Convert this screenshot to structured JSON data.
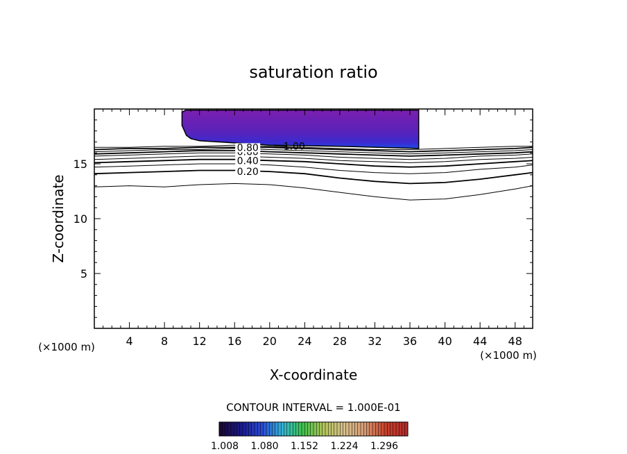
{
  "chart_data": {
    "type": "contour",
    "title": "saturation ratio",
    "xlabel": "X-coordinate",
    "ylabel": "Z-coordinate",
    "x_unit_left": "(×1000 m)",
    "x_unit_right": "(×1000 m)",
    "xlim": [
      0,
      50
    ],
    "ylim": [
      0,
      20
    ],
    "x_ticks": [
      4,
      8,
      12,
      16,
      20,
      24,
      28,
      32,
      36,
      40,
      44,
      48
    ],
    "y_ticks": [
      5,
      10,
      15
    ],
    "contour_interval_label": "CONTOUR INTERVAL = 1.000E-01",
    "contour_lines": [
      {
        "label": "",
        "points": [
          [
            0,
            12.9
          ],
          [
            4,
            13.0
          ],
          [
            8,
            12.9
          ],
          [
            12,
            13.1
          ],
          [
            16,
            13.2
          ],
          [
            20,
            13.1
          ],
          [
            24,
            12.8
          ],
          [
            28,
            12.4
          ],
          [
            32,
            12.0
          ],
          [
            36,
            11.7
          ],
          [
            40,
            11.8
          ],
          [
            44,
            12.2
          ],
          [
            48,
            12.7
          ],
          [
            50,
            13.0
          ]
        ]
      },
      {
        "label": "0.20",
        "points": [
          [
            0,
            14.1
          ],
          [
            4,
            14.2
          ],
          [
            8,
            14.3
          ],
          [
            12,
            14.4
          ],
          [
            16,
            14.4
          ],
          [
            20,
            14.3
          ],
          [
            24,
            14.1
          ],
          [
            28,
            13.7
          ],
          [
            32,
            13.4
          ],
          [
            36,
            13.2
          ],
          [
            40,
            13.3
          ],
          [
            44,
            13.6
          ],
          [
            48,
            14.0
          ],
          [
            50,
            14.2
          ]
        ]
      },
      {
        "label": "",
        "points": [
          [
            0,
            14.7
          ],
          [
            4,
            14.8
          ],
          [
            8,
            14.9
          ],
          [
            12,
            15.0
          ],
          [
            16,
            15.0
          ],
          [
            20,
            14.9
          ],
          [
            24,
            14.7
          ],
          [
            28,
            14.4
          ],
          [
            32,
            14.2
          ],
          [
            36,
            14.1
          ],
          [
            40,
            14.2
          ],
          [
            44,
            14.5
          ],
          [
            48,
            14.7
          ],
          [
            50,
            14.9
          ]
        ]
      },
      {
        "label": "0.40",
        "points": [
          [
            0,
            15.1
          ],
          [
            4,
            15.2
          ],
          [
            8,
            15.3
          ],
          [
            12,
            15.4
          ],
          [
            16,
            15.4
          ],
          [
            20,
            15.3
          ],
          [
            24,
            15.2
          ],
          [
            28,
            15.0
          ],
          [
            32,
            14.8
          ],
          [
            36,
            14.7
          ],
          [
            40,
            14.8
          ],
          [
            44,
            15.0
          ],
          [
            48,
            15.2
          ],
          [
            50,
            15.3
          ]
        ]
      },
      {
        "label": "",
        "points": [
          [
            0,
            15.4
          ],
          [
            4,
            15.5
          ],
          [
            8,
            15.6
          ],
          [
            12,
            15.7
          ],
          [
            16,
            15.7
          ],
          [
            20,
            15.6
          ],
          [
            24,
            15.5
          ],
          [
            28,
            15.3
          ],
          [
            32,
            15.2
          ],
          [
            36,
            15.1
          ],
          [
            40,
            15.2
          ],
          [
            44,
            15.4
          ],
          [
            48,
            15.5
          ],
          [
            50,
            15.6
          ]
        ]
      },
      {
        "label": "",
        "points": [
          [
            0,
            15.7
          ],
          [
            4,
            15.8
          ],
          [
            8,
            15.9
          ],
          [
            12,
            16.0
          ],
          [
            16,
            16.0
          ],
          [
            20,
            15.9
          ],
          [
            24,
            15.8
          ],
          [
            28,
            15.6
          ],
          [
            32,
            15.5
          ],
          [
            36,
            15.4
          ],
          [
            40,
            15.5
          ],
          [
            44,
            15.7
          ],
          [
            48,
            15.8
          ],
          [
            50,
            15.9
          ]
        ]
      },
      {
        "label": "0.60",
        "points": [
          [
            0,
            15.9
          ],
          [
            4,
            16.0
          ],
          [
            8,
            16.1
          ],
          [
            12,
            16.2
          ],
          [
            16,
            16.2
          ],
          [
            20,
            16.1
          ],
          [
            24,
            16.0
          ],
          [
            28,
            15.9
          ],
          [
            32,
            15.8
          ],
          [
            36,
            15.7
          ],
          [
            40,
            15.8
          ],
          [
            44,
            15.9
          ],
          [
            48,
            16.0
          ],
          [
            50,
            16.1
          ]
        ]
      },
      {
        "label": "",
        "points": [
          [
            0,
            16.1
          ],
          [
            4,
            16.2
          ],
          [
            8,
            16.3
          ],
          [
            12,
            16.3
          ],
          [
            16,
            16.4
          ],
          [
            20,
            16.3
          ],
          [
            24,
            16.2
          ],
          [
            28,
            16.1
          ],
          [
            32,
            16.0
          ],
          [
            36,
            15.9
          ],
          [
            40,
            16.0
          ],
          [
            44,
            16.1
          ],
          [
            48,
            16.2
          ],
          [
            50,
            16.3
          ]
        ]
      },
      {
        "label": "0.80",
        "points": [
          [
            0,
            16.3
          ],
          [
            4,
            16.4
          ],
          [
            8,
            16.4
          ],
          [
            12,
            16.5
          ],
          [
            16,
            16.5
          ],
          [
            20,
            16.5
          ],
          [
            24,
            16.4
          ],
          [
            28,
            16.3
          ],
          [
            32,
            16.2
          ],
          [
            36,
            16.1
          ],
          [
            40,
            16.2
          ],
          [
            44,
            16.3
          ],
          [
            48,
            16.4
          ],
          [
            50,
            16.5
          ]
        ]
      },
      {
        "label": "",
        "points": [
          [
            0,
            16.5
          ],
          [
            4,
            16.5
          ],
          [
            8,
            16.6
          ],
          [
            12,
            16.6
          ],
          [
            16,
            16.7
          ],
          [
            20,
            16.6
          ],
          [
            24,
            16.5
          ],
          [
            28,
            16.4
          ],
          [
            32,
            16.3
          ],
          [
            36,
            16.3
          ],
          [
            40,
            16.4
          ],
          [
            44,
            16.5
          ],
          [
            48,
            16.6
          ],
          [
            50,
            16.6
          ]
        ]
      },
      {
        "label": "1.00",
        "points": [
          [
            20.5,
            16.6
          ],
          [
            22,
            16.6
          ]
        ]
      }
    ],
    "filled_region": {
      "description": "supersaturated region filled with colour scale",
      "outline": [
        [
          10,
          19.7
        ],
        [
          10.4,
          19.9
        ],
        [
          37,
          19.9
        ],
        [
          37,
          16.4
        ],
        [
          28,
          16.6
        ],
        [
          20,
          16.7
        ],
        [
          12,
          17.1
        ],
        [
          11,
          17.3
        ],
        [
          10.5,
          17.6
        ],
        [
          10,
          18.5
        ]
      ]
    },
    "colorbar": {
      "tick_labels": [
        "1.008",
        "1.080",
        "1.152",
        "1.224",
        "1.296"
      ],
      "colors": [
        "#1a0833",
        "#1a1a8c",
        "#2a4ad6",
        "#34b6d6",
        "#3ec24a",
        "#b4c45a",
        "#d6bf8c",
        "#d69a72",
        "#c8402a",
        "#b42b2b"
      ]
    }
  }
}
